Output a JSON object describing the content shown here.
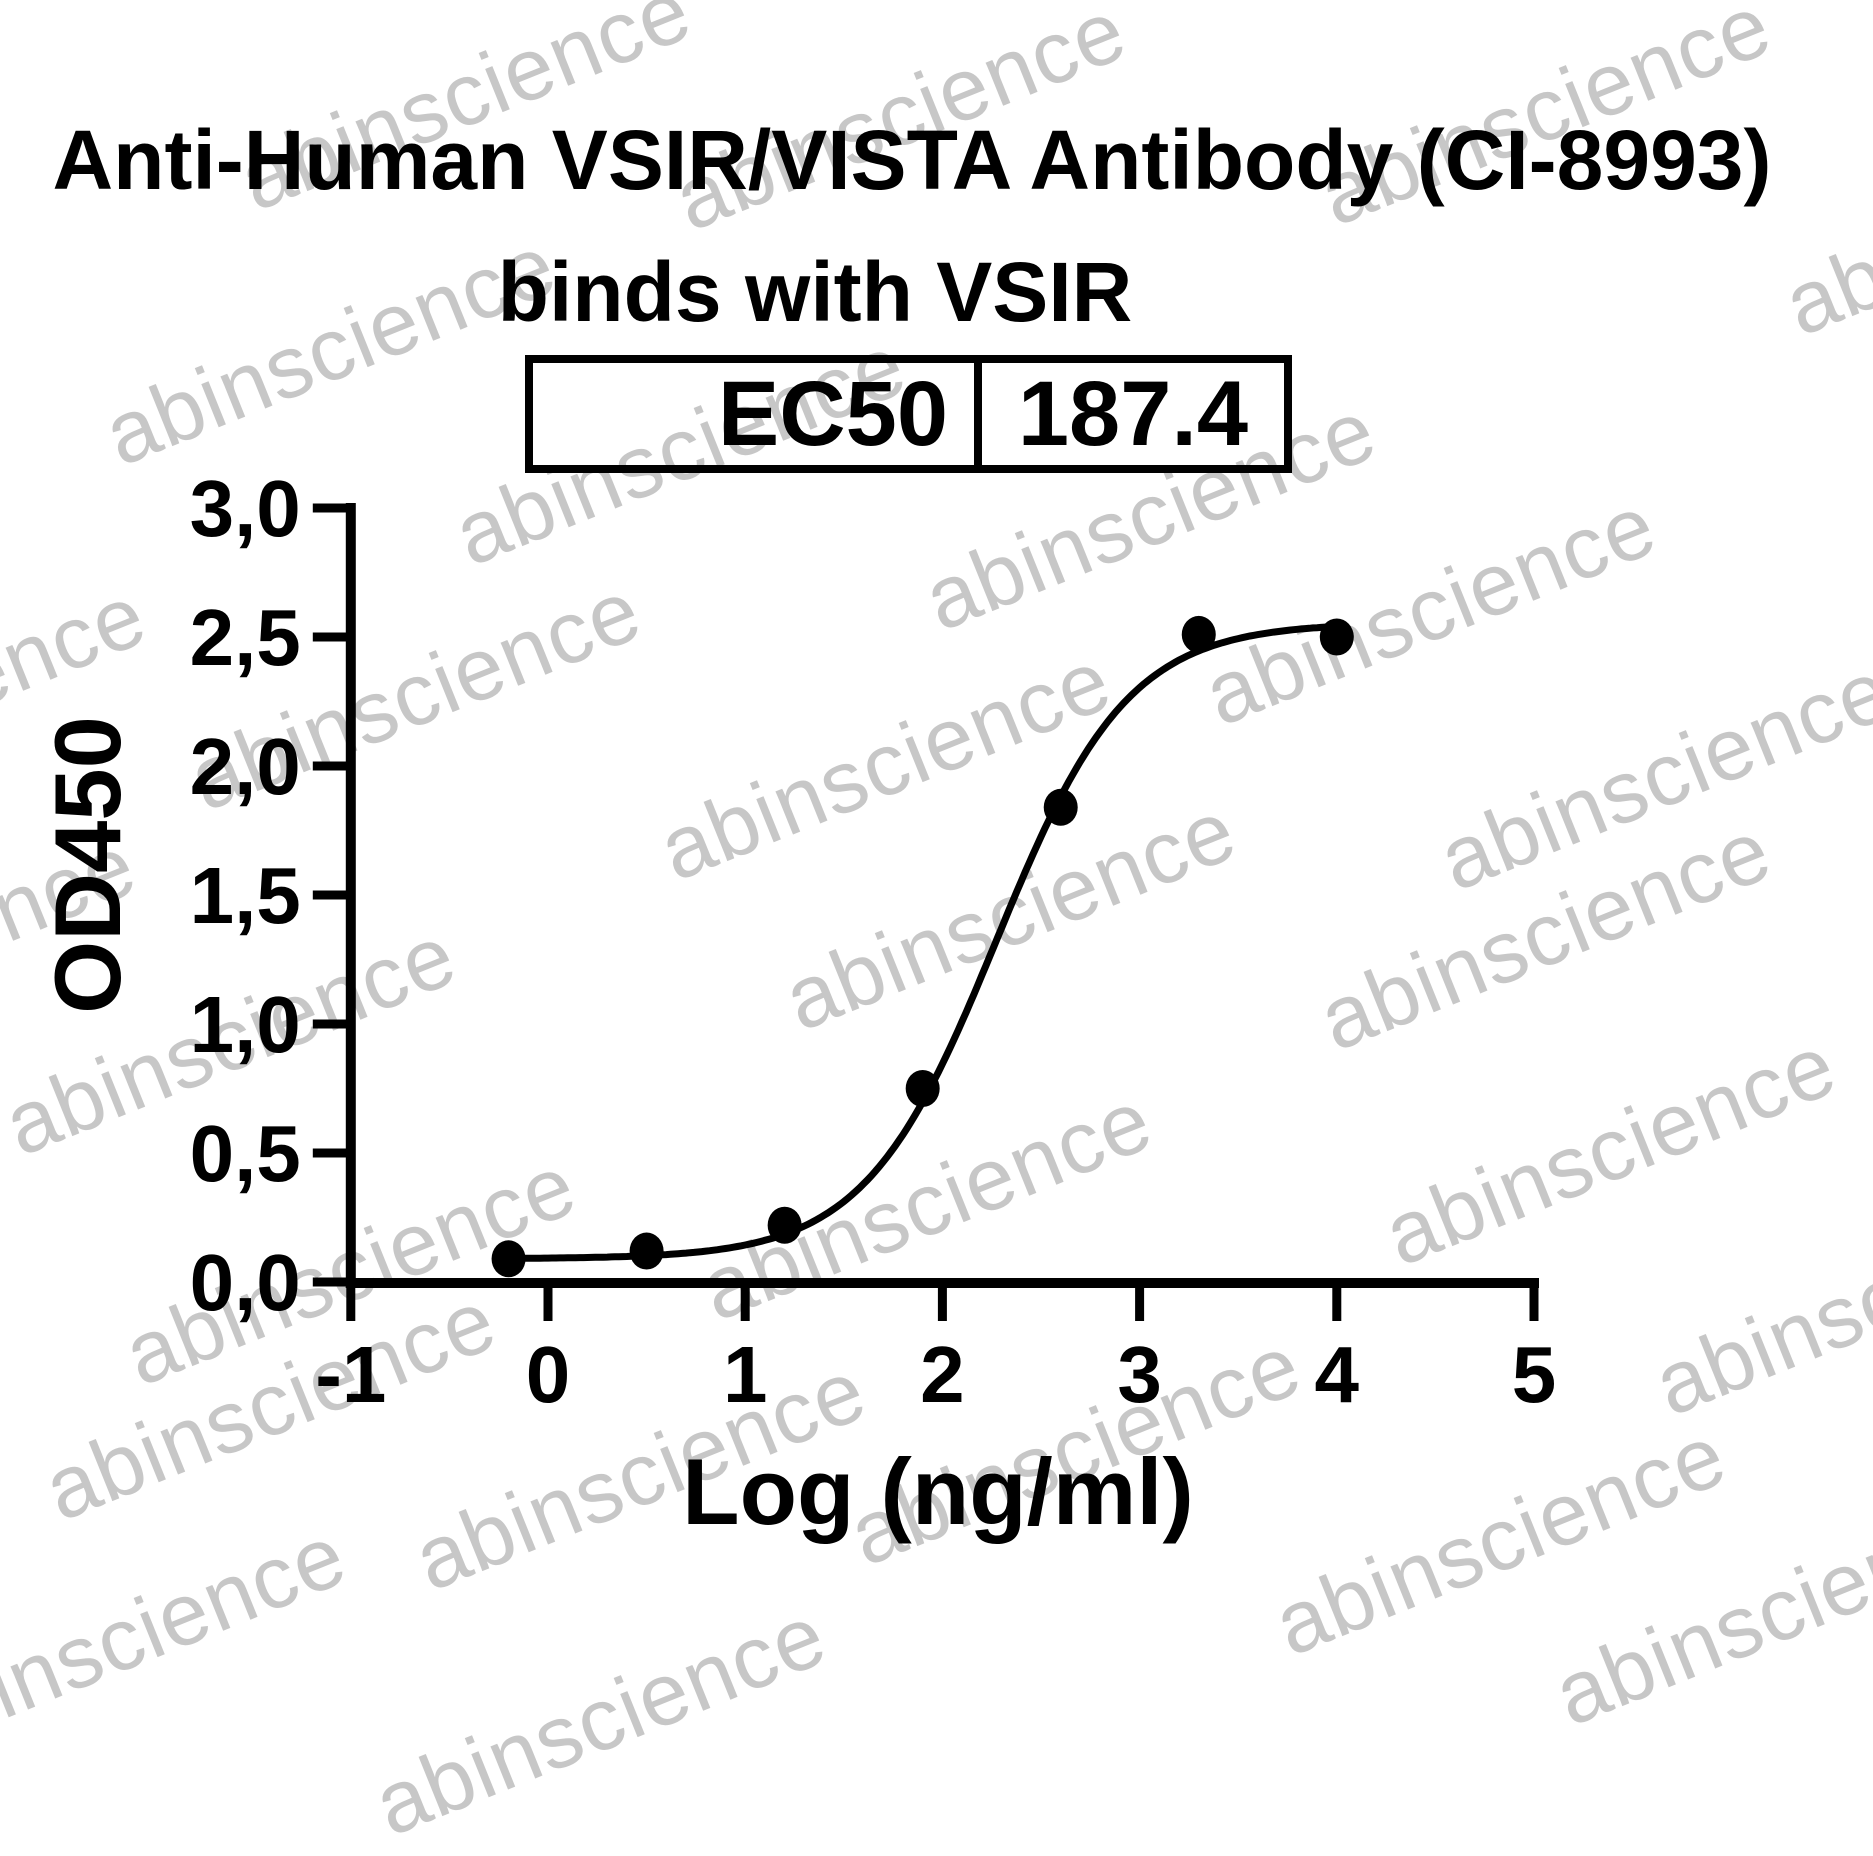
{
  "title": {
    "line1": "Anti-Human VSIR/VISTA Antibody (CI-8993)",
    "line2": "binds with VSIR"
  },
  "ec50_table": {
    "label": "EC50",
    "value": "187.4"
  },
  "watermark": {
    "text": "abinscience",
    "color": "#c7c7c7",
    "instances": [
      [
        465,
        95
      ],
      [
        900,
        115
      ],
      [
        1545,
        110
      ],
      [
        2010,
        220
      ],
      [
        330,
        350
      ],
      [
        680,
        450
      ],
      [
        1150,
        515
      ],
      [
        1430,
        610
      ],
      [
        -80,
        700
      ],
      [
        415,
        695
      ],
      [
        885,
        765
      ],
      [
        1665,
        775
      ],
      [
        -90,
        950
      ],
      [
        1010,
        915
      ],
      [
        1545,
        935
      ],
      [
        230,
        1040
      ],
      [
        350,
        1270
      ],
      [
        926,
        1205
      ],
      [
        1610,
        1150
      ],
      [
        270,
        1405
      ],
      [
        640,
        1475
      ],
      [
        1075,
        1450
      ],
      [
        1500,
        1540
      ],
      [
        1880,
        1300
      ],
      [
        120,
        1640
      ],
      [
        600,
        1720
      ],
      [
        1780,
        1610
      ]
    ]
  },
  "chart_data": {
    "type": "scatter",
    "title": "Anti-Human VSIR/VISTA Antibody (CI-8993) binds with VSIR",
    "xlabel": "Log (ng/ml)",
    "ylabel": "OD450",
    "xlim": [
      -1,
      5
    ],
    "ylim": [
      0,
      3
    ],
    "grid": false,
    "legend": "none",
    "marker_color": "#000000",
    "line_color": "#000000",
    "x_ticks": [
      {
        "v": -1,
        "label": "-1"
      },
      {
        "v": 0,
        "label": "0"
      },
      {
        "v": 1,
        "label": "1"
      },
      {
        "v": 2,
        "label": "2"
      },
      {
        "v": 3,
        "label": "3"
      },
      {
        "v": 4,
        "label": "4"
      },
      {
        "v": 5,
        "label": "5"
      }
    ],
    "y_ticks": [
      {
        "v": 0.0,
        "label": "0,0"
      },
      {
        "v": 0.5,
        "label": "0,5"
      },
      {
        "v": 1.0,
        "label": "1,0"
      },
      {
        "v": 1.5,
        "label": "1,5"
      },
      {
        "v": 2.0,
        "label": "2,0"
      },
      {
        "v": 2.5,
        "label": "2,5"
      },
      {
        "v": 3.0,
        "label": "3,0"
      }
    ],
    "points": [
      {
        "x": -0.2,
        "y": 0.09
      },
      {
        "x": 0.5,
        "y": 0.12
      },
      {
        "x": 1.2,
        "y": 0.22
      },
      {
        "x": 1.9,
        "y": 0.75
      },
      {
        "x": 2.6,
        "y": 1.84
      },
      {
        "x": 3.3,
        "y": 2.51
      },
      {
        "x": 4.0,
        "y": 2.5
      }
    ],
    "ec50": 187.4,
    "curve_fit": {
      "model": "4PL",
      "bottom": 0.09,
      "top": 2.555,
      "hill": 1.3,
      "log_ec50": 2.273
    }
  }
}
